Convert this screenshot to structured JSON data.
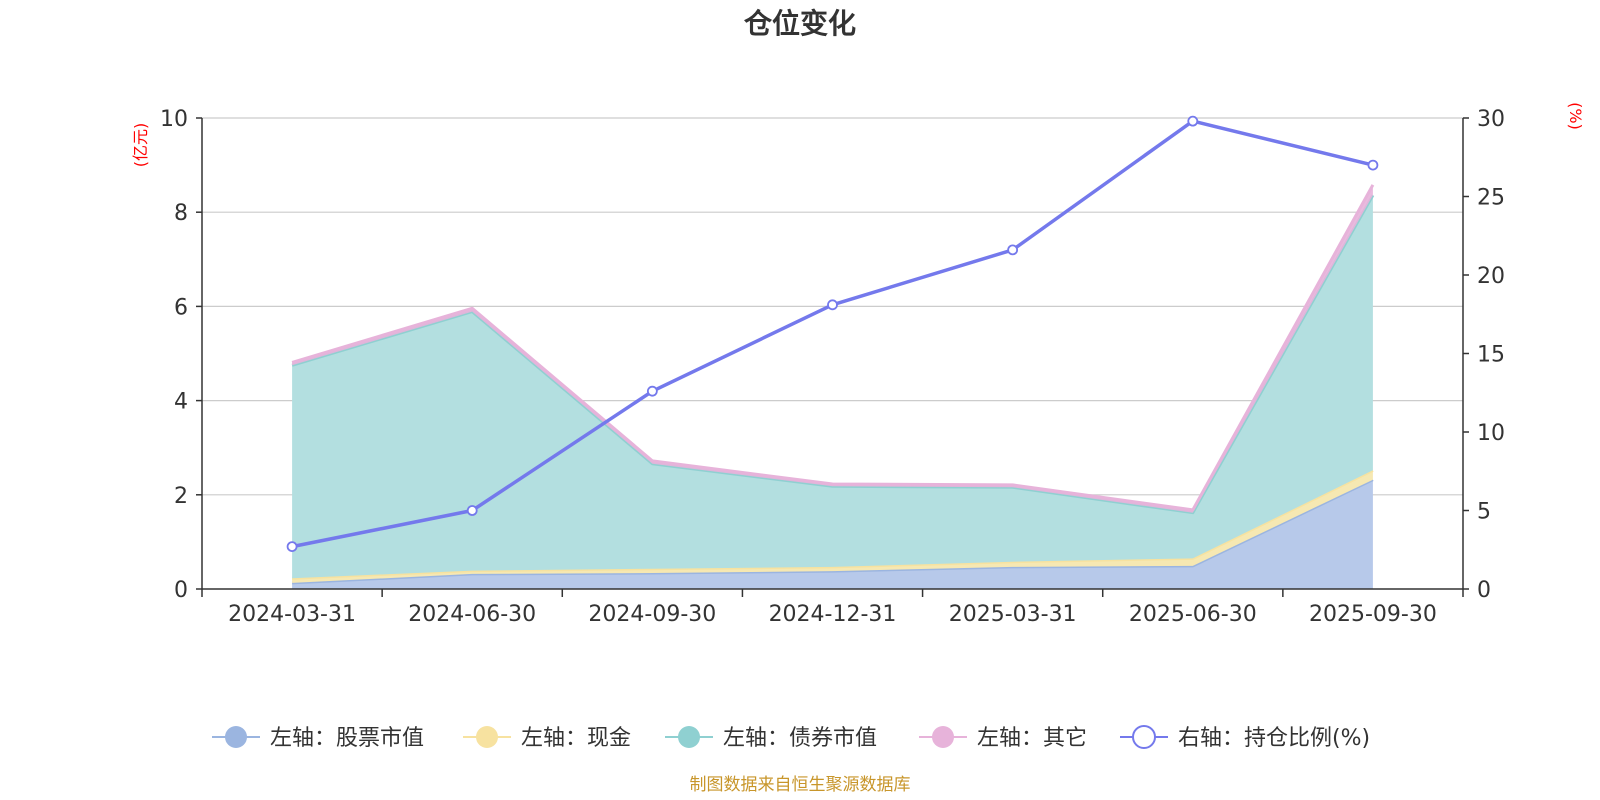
{
  "chart_data": {
    "type": "area",
    "title": "仓位变化",
    "categories": [
      "2024-03-31",
      "2024-06-30",
      "2024-09-30",
      "2024-12-31",
      "2025-03-31",
      "2025-06-30",
      "2025-09-30"
    ],
    "left_axis": {
      "unit": "(亿元)",
      "range": [
        0,
        10
      ],
      "ticks": [
        "0",
        "2",
        "4",
        "6",
        "8",
        "10"
      ]
    },
    "right_axis": {
      "unit": "(%)",
      "range": [
        0,
        30
      ],
      "ticks": [
        "0",
        "5",
        "10",
        "15",
        "20",
        "25",
        "30"
      ]
    },
    "series": [
      {
        "name": "左轴：股票市值",
        "axis": "left",
        "kind": "stacked-area",
        "color": "#9bb5e0",
        "fill": "#b7c9ea",
        "values": [
          0.13,
          0.32,
          0.34,
          0.38,
          0.47,
          0.49,
          2.32
        ]
      },
      {
        "name": "左轴：现金",
        "axis": "left",
        "kind": "stacked-area",
        "color": "#f7e2a0",
        "fill": "#f6e8b2",
        "values": [
          0.1,
          0.07,
          0.09,
          0.09,
          0.11,
          0.16,
          0.2
        ]
      },
      {
        "name": "左轴：债券市值",
        "axis": "left",
        "kind": "stacked-area",
        "color": "#8fd0d1",
        "fill": "#b3dfe0",
        "values": [
          4.52,
          5.5,
          2.23,
          1.71,
          1.58,
          0.97,
          5.84
        ]
      },
      {
        "name": "左轴：其它",
        "axis": "left",
        "kind": "stacked-area",
        "color": "#e7b3da",
        "fill": "#e7b3da",
        "values": [
          0.06,
          0.07,
          0.06,
          0.05,
          0.05,
          0.06,
          0.22
        ]
      },
      {
        "name": "右轴：持仓比例(%)",
        "axis": "right",
        "kind": "line",
        "color": "#7479ec",
        "values": [
          2.7,
          5.0,
          12.6,
          18.1,
          21.6,
          29.8,
          27.0
        ]
      }
    ],
    "legend_position": "bottom",
    "grid": true
  },
  "source_text": "制图数据来自恒生聚源数据库",
  "colors": {
    "axis_unit": "#ff0000",
    "source": "#c8962b",
    "grid": "#cccccc",
    "axis": "#333333"
  }
}
